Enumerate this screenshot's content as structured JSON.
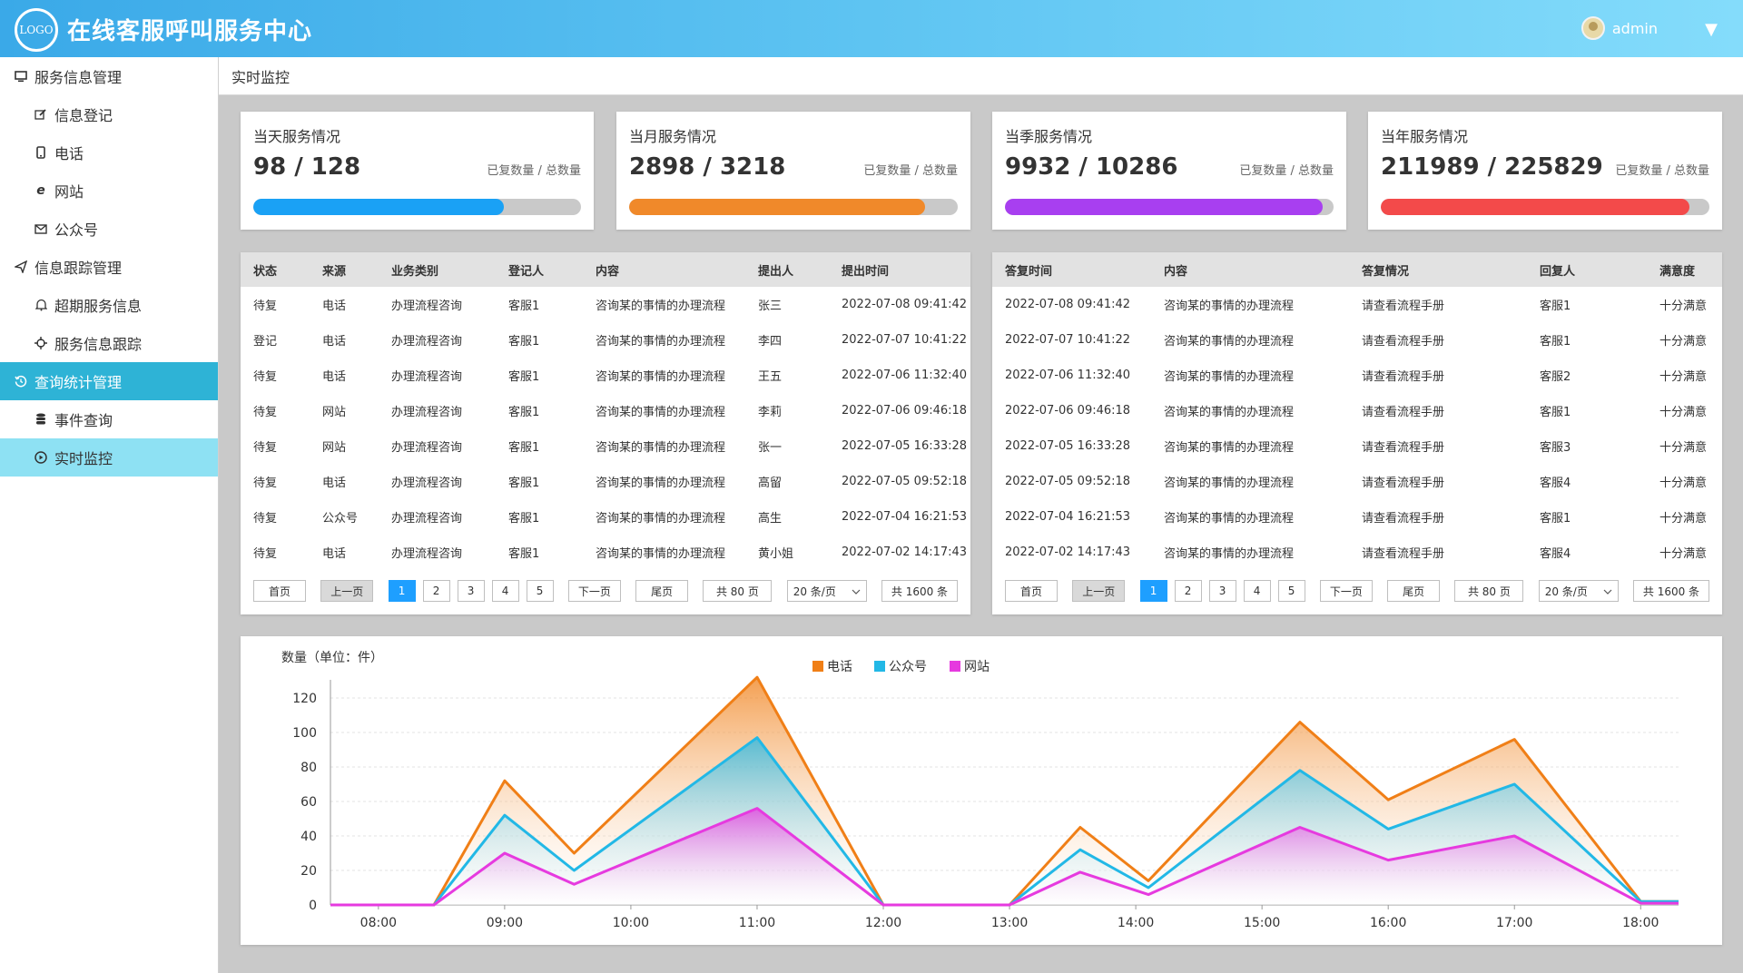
{
  "header": {
    "logo_text": "LOGO",
    "title": "在线客服呼叫服务中心",
    "username": "admin",
    "caret": "▼"
  },
  "sidebar": {
    "groups": [
      {
        "label": "服务信息管理",
        "icon": "monitor-icon",
        "items": [
          {
            "label": "信息登记",
            "icon": "edit-icon"
          },
          {
            "label": "电话",
            "icon": "phone-icon"
          },
          {
            "label": "网站",
            "icon": "ie-icon"
          },
          {
            "label": "公众号",
            "icon": "mail-icon"
          }
        ]
      },
      {
        "label": "信息跟踪管理",
        "icon": "send-icon",
        "items": [
          {
            "label": "超期服务信息",
            "icon": "bell-icon"
          },
          {
            "label": "服务信息跟踪",
            "icon": "crosshair-icon"
          }
        ]
      },
      {
        "label": "查询统计管理",
        "icon": "history-icon",
        "active": true,
        "items": [
          {
            "label": "事件查询",
            "icon": "database-icon"
          },
          {
            "label": "实时监控",
            "icon": "play-circle-icon",
            "active": true
          }
        ]
      }
    ]
  },
  "breadcrumb": "实时监控",
  "stats": [
    {
      "title": "当天服务情况",
      "done": 98,
      "total": 128,
      "value": "98 / 128",
      "note": "已复数量 / 总数量",
      "color": "#1aa1f5"
    },
    {
      "title": "当月服务情况",
      "done": 2898,
      "total": 3218,
      "value": "2898 / 3218",
      "note": "已复数量 / 总数量",
      "color": "#f0892a"
    },
    {
      "title": "当季服务情况",
      "done": 9932,
      "total": 10286,
      "value": "9932 / 10286",
      "note": "已复数量 / 总数量",
      "color": "#a83ff0"
    },
    {
      "title": "当年服务情况",
      "done": 211989,
      "total": 225829,
      "value": "211989 / 225829",
      "note": "已复数量 / 总数量",
      "color": "#f34a4a"
    }
  ],
  "left_table": {
    "columns": [
      "状态",
      "来源",
      "业务类别",
      "登记人",
      "内容",
      "提出人",
      "提出时间"
    ],
    "rows": [
      [
        "待复",
        "电话",
        "办理流程咨询",
        "客服1",
        "咨询某的事情的办理流程",
        "张三",
        "2022-07-08 09:41:42"
      ],
      [
        "登记",
        "电话",
        "办理流程咨询",
        "客服1",
        "咨询某的事情的办理流程",
        "李四",
        "2022-07-07 10:41:22"
      ],
      [
        "待复",
        "电话",
        "办理流程咨询",
        "客服1",
        "咨询某的事情的办理流程",
        "王五",
        "2022-07-06 11:32:40"
      ],
      [
        "待复",
        "网站",
        "办理流程咨询",
        "客服1",
        "咨询某的事情的办理流程",
        "李莉",
        "2022-07-06 09:46:18"
      ],
      [
        "待复",
        "网站",
        "办理流程咨询",
        "客服1",
        "咨询某的事情的办理流程",
        "张一",
        "2022-07-05 16:33:28"
      ],
      [
        "待复",
        "电话",
        "办理流程咨询",
        "客服1",
        "咨询某的事情的办理流程",
        "高留",
        "2022-07-05 09:52:18"
      ],
      [
        "待复",
        "公众号",
        "办理流程咨询",
        "客服1",
        "咨询某的事情的办理流程",
        "高生",
        "2022-07-04 16:21:53"
      ],
      [
        "待复",
        "电话",
        "办理流程咨询",
        "客服1",
        "咨询某的事情的办理流程",
        "黄小姐",
        "2022-07-02 14:17:43"
      ]
    ]
  },
  "right_table": {
    "columns": [
      "答复时间",
      "内容",
      "答复情况",
      "回复人",
      "满意度"
    ],
    "rows": [
      [
        "2022-07-08 09:41:42",
        "咨询某的事情的办理流程",
        "请查看流程手册",
        "客服1",
        "十分满意"
      ],
      [
        "2022-07-07 10:41:22",
        "咨询某的事情的办理流程",
        "请查看流程手册",
        "客服1",
        "十分满意"
      ],
      [
        "2022-07-06 11:32:40",
        "咨询某的事情的办理流程",
        "请查看流程手册",
        "客服2",
        "十分满意"
      ],
      [
        "2022-07-06 09:46:18",
        "咨询某的事情的办理流程",
        "请查看流程手册",
        "客服1",
        "十分满意"
      ],
      [
        "2022-07-05 16:33:28",
        "咨询某的事情的办理流程",
        "请查看流程手册",
        "客服3",
        "十分满意"
      ],
      [
        "2022-07-05 09:52:18",
        "咨询某的事情的办理流程",
        "请查看流程手册",
        "客服4",
        "十分满意"
      ],
      [
        "2022-07-04 16:21:53",
        "咨询某的事情的办理流程",
        "请查看流程手册",
        "客服1",
        "十分满意"
      ],
      [
        "2022-07-02 14:17:43",
        "咨询某的事情的办理流程",
        "请查看流程手册",
        "客服4",
        "十分满意"
      ]
    ]
  },
  "pager": {
    "first": "首页",
    "prev": "上一页",
    "pages": [
      "1",
      "2",
      "3",
      "4",
      "5"
    ],
    "current": "1",
    "next": "下一页",
    "last": "尾页",
    "total_pages": "共 80 页",
    "page_size": "20 条/页",
    "total_items": "共 1600 条"
  },
  "chart_data": {
    "type": "area",
    "ylabel": "数量（单位：件）",
    "ylim": [
      0,
      120
    ],
    "yticks": [
      0,
      20,
      40,
      60,
      80,
      100,
      120
    ],
    "xticks": [
      "08:00",
      "09:00",
      "10:00",
      "11:00",
      "12:00",
      "13:00",
      "14:00",
      "15:00",
      "16:00",
      "17:00",
      "18:00"
    ],
    "xlim": [
      7.62,
      18.3
    ],
    "grid": true,
    "legend_position": "top-center",
    "series": [
      {
        "name": "电话",
        "color": "#f07f17",
        "x": [
          7.62,
          8.0,
          8.44,
          9.0,
          9.55,
          11.0,
          12.0,
          13.0,
          13.56,
          14.1,
          15.3,
          16.0,
          17.0,
          18.0,
          18.3
        ],
        "y": [
          0,
          0,
          0,
          72,
          30,
          132,
          0,
          0,
          45,
          14,
          106,
          61,
          96,
          2,
          2
        ]
      },
      {
        "name": "公众号",
        "color": "#22b8e6",
        "x": [
          7.62,
          8.0,
          8.44,
          9.0,
          9.55,
          11.0,
          12.0,
          13.0,
          13.56,
          14.1,
          15.3,
          16.0,
          17.0,
          18.0,
          18.3
        ],
        "y": [
          0,
          0,
          0,
          52,
          20,
          97,
          0,
          0,
          32,
          10,
          78,
          44,
          70,
          2,
          2
        ]
      },
      {
        "name": "网站",
        "color": "#e63adf",
        "x": [
          7.62,
          8.0,
          8.44,
          9.0,
          9.55,
          11.0,
          12.0,
          13.0,
          13.56,
          14.1,
          15.3,
          16.0,
          17.0,
          18.0,
          18.3
        ],
        "y": [
          0,
          0,
          0,
          30,
          12,
          56,
          0,
          0,
          19,
          6,
          45,
          26,
          40,
          1,
          1
        ]
      }
    ]
  }
}
